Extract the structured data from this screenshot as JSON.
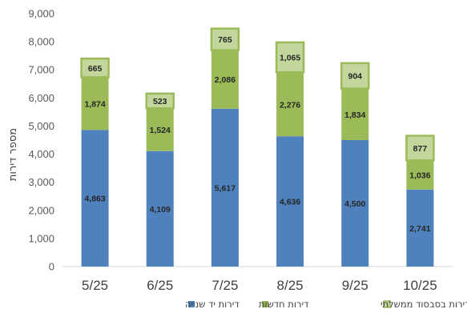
{
  "chart_data": {
    "type": "bar",
    "stacked": true,
    "categories": [
      "5/25",
      "6/25",
      "7/25",
      "8/25",
      "9/25",
      "10/25"
    ],
    "series": [
      {
        "name": "דירות יד שנייה",
        "color": "#4F81BD",
        "values": [
          4863,
          4109,
          5617,
          4636,
          4500,
          2741
        ],
        "labels": [
          "4,863",
          "4,109",
          "5,617",
          "4,636",
          "4,500",
          "2,741"
        ]
      },
      {
        "name": "דירות חדשות",
        "color": "#9BBB59",
        "values": [
          1874,
          1524,
          2086,
          2276,
          1834,
          1036
        ],
        "labels": [
          "1,874",
          "1,524",
          "2,086",
          "2,276",
          "1,834",
          "1,036"
        ]
      },
      {
        "name": "דירות בסבסוד ממשלתי",
        "color": "#C3D69B",
        "border": "#9BBB59",
        "values": [
          665,
          523,
          765,
          1065,
          904,
          877
        ],
        "labels": [
          "665",
          "523",
          "765",
          "1,065",
          "904",
          "877"
        ]
      }
    ],
    "ylabel": "מספר דירות",
    "ylim": [
      0,
      9000
    ],
    "yticks": [
      0,
      1000,
      2000,
      3000,
      4000,
      5000,
      6000,
      7000,
      8000,
      9000
    ],
    "ytick_labels": [
      "0",
      "1,000",
      "2,000",
      "3,000",
      "4,000",
      "5,000",
      "6,000",
      "7,000",
      "8,000",
      "9,000"
    ],
    "grid": false,
    "legend_position": "bottom"
  }
}
